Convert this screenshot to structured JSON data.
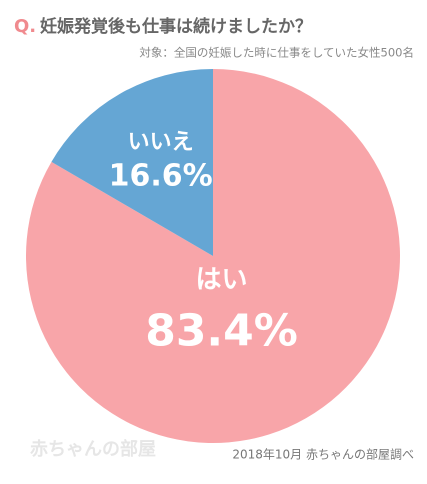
{
  "chart_data": {
    "type": "pie",
    "question_label": "Q.",
    "title": "妊娠発覚後も仕事は続けましたか？",
    "subtitle": "対象：全国の妊娠した時に仕事をしていた女性500名",
    "categories": [
      "はい",
      "いいえ"
    ],
    "values": [
      83.4,
      16.6
    ],
    "value_labels": [
      "83.4%",
      "16.6%"
    ],
    "colors": [
      "#f8a5a9",
      "#65a6d4"
    ],
    "source": "2018年10月 赤ちゃんの部屋調べ",
    "watermark": "赤ちゃんの部屋"
  }
}
